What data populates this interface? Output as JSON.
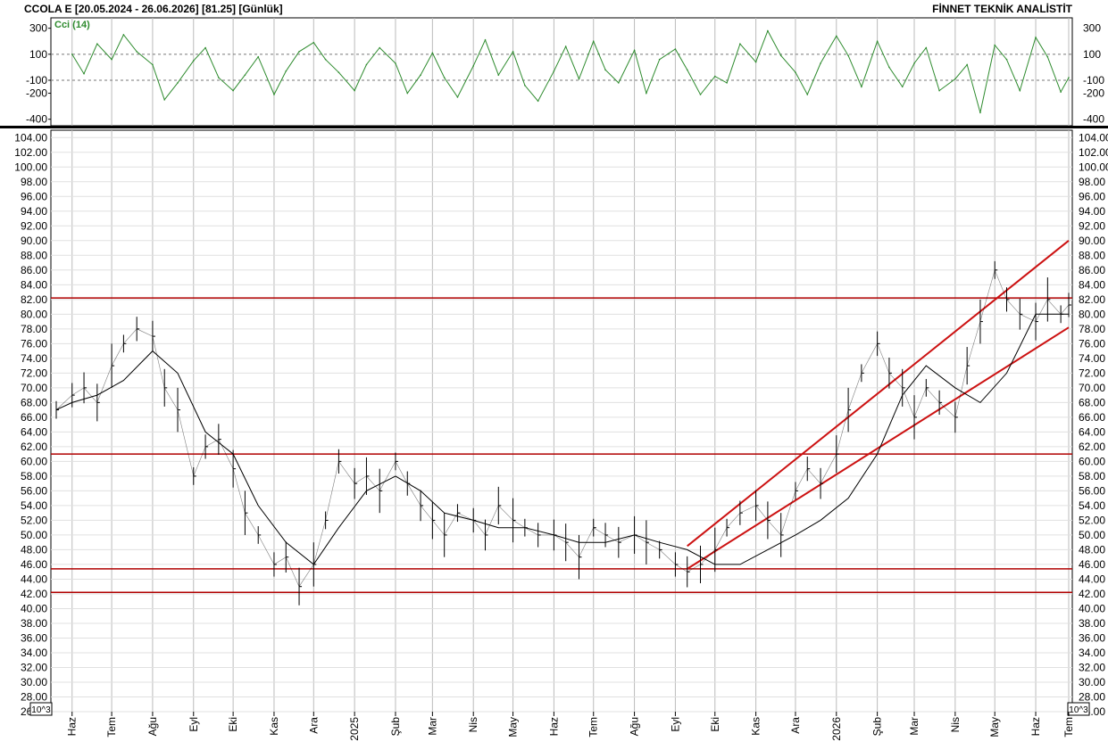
{
  "header": {
    "left_title": "CCOLA E  [20.05.2024 - 26.06.2026]  [81.25]  [Günlük]",
    "right_title": "FİNNET TEKNİK ANALİSTİT"
  },
  "colors": {
    "price_bars": "#000000",
    "moving_average": "#000000",
    "cci_line": "#2e8b2e",
    "support_resistance": "#b00000",
    "channel_lines": "#cc1111",
    "grid": "#bbbbbb"
  },
  "chart_data": [
    {
      "type": "line",
      "title": "Cci (14)",
      "ylim": [
        -450,
        380
      ],
      "y_ticks": [
        300,
        100,
        -100,
        -200,
        -400
      ],
      "reference_levels": [
        100,
        -100
      ],
      "x_range": [
        "2024-05-20",
        "2026-06-26"
      ],
      "series": [
        {
          "name": "Cci (14)",
          "x": [
            "2024-06-01",
            "2024-06-10",
            "2024-06-20",
            "2024-07-01",
            "2024-07-10",
            "2024-07-20",
            "2024-08-01",
            "2024-08-10",
            "2024-08-20",
            "2024-09-01",
            "2024-09-10",
            "2024-09-20",
            "2024-10-01",
            "2024-10-10",
            "2024-10-20",
            "2024-11-01",
            "2024-11-10",
            "2024-11-20",
            "2024-12-01",
            "2024-12-10",
            "2024-12-20",
            "2025-01-01",
            "2025-01-10",
            "2025-01-20",
            "2025-02-01",
            "2025-02-10",
            "2025-02-20",
            "2025-03-01",
            "2025-03-10",
            "2025-03-20",
            "2025-04-01",
            "2025-04-10",
            "2025-04-20",
            "2025-05-01",
            "2025-05-10",
            "2025-05-20",
            "2025-06-01",
            "2025-06-10",
            "2025-06-20",
            "2025-07-01",
            "2025-07-10",
            "2025-07-20",
            "2025-08-01",
            "2025-08-10",
            "2025-08-20",
            "2025-09-01",
            "2025-09-10",
            "2025-09-20",
            "2025-10-01",
            "2025-10-10",
            "2025-10-20",
            "2025-11-01",
            "2025-11-10",
            "2025-11-20",
            "2025-12-01",
            "2025-12-10",
            "2025-12-20",
            "2026-01-01",
            "2026-01-10",
            "2026-01-20",
            "2026-02-01",
            "2026-02-10",
            "2026-02-20",
            "2026-03-01",
            "2026-03-10",
            "2026-03-20",
            "2026-04-01",
            "2026-04-10",
            "2026-04-20",
            "2026-05-01",
            "2026-05-10",
            "2026-05-20",
            "2026-06-01",
            "2026-06-10",
            "2026-06-20",
            "2026-06-26"
          ],
          "values": [
            100,
            -50,
            180,
            60,
            250,
            120,
            20,
            -250,
            -120,
            50,
            150,
            -80,
            -180,
            -60,
            80,
            -210,
            -30,
            120,
            190,
            60,
            -40,
            -180,
            20,
            150,
            30,
            -200,
            -60,
            110,
            -80,
            -230,
            10,
            210,
            -60,
            120,
            -140,
            -260,
            -30,
            160,
            -90,
            200,
            -20,
            -120,
            130,
            -200,
            60,
            140,
            -20,
            -210,
            -70,
            -120,
            180,
            40,
            280,
            90,
            -40,
            -210,
            30,
            240,
            90,
            -150,
            200,
            0,
            -150,
            30,
            150,
            -180,
            -90,
            20,
            -350,
            170,
            60,
            -180,
            230,
            80,
            -190,
            -80
          ]
        }
      ]
    },
    {
      "type": "line",
      "title": "",
      "ylim": [
        26,
        105
      ],
      "y_ticks": [
        104,
        102,
        100,
        98,
        96,
        94,
        92,
        90,
        88,
        86,
        84,
        82,
        80,
        78,
        76,
        74,
        72,
        70,
        68,
        66,
        64,
        62,
        60,
        58,
        56,
        54,
        52,
        50,
        48,
        46,
        44,
        42,
        40,
        38,
        36,
        34,
        32,
        30,
        28,
        26
      ],
      "x_range": [
        "2024-05-20",
        "2026-06-26"
      ],
      "x_tick_labels": [
        "Haz",
        "Tem",
        "Ağu",
        "Eyl",
        "Eki",
        "Kas",
        "Ara",
        "2025",
        "Şub",
        "Mar",
        "Nis",
        "May",
        "Haz",
        "Tem",
        "Ağu",
        "Eyl",
        "Eki",
        "Kas",
        "Ara",
        "2026",
        "Şub",
        "Mar",
        "Nis",
        "May",
        "Haz",
        "Tem"
      ],
      "corner_label": "10^3",
      "last_close": 81.25,
      "horizontal_levels": [
        82.2,
        61.0,
        45.4,
        42.2
      ],
      "channels": [
        {
          "x": [
            "2025-09-10",
            "2026-06-26"
          ],
          "upper": [
            48.5,
            90.0
          ],
          "lower": [
            45.4,
            78.2
          ]
        }
      ],
      "series": [
        {
          "name": "Price",
          "x": [
            "2024-05-20",
            "2024-06-01",
            "2024-06-10",
            "2024-06-20",
            "2024-07-01",
            "2024-07-10",
            "2024-07-20",
            "2024-08-01",
            "2024-08-10",
            "2024-08-20",
            "2024-09-01",
            "2024-09-10",
            "2024-09-20",
            "2024-10-01",
            "2024-10-10",
            "2024-10-20",
            "2024-11-01",
            "2024-11-10",
            "2024-11-20",
            "2024-12-01",
            "2024-12-10",
            "2024-12-20",
            "2025-01-01",
            "2025-01-10",
            "2025-01-20",
            "2025-02-01",
            "2025-02-10",
            "2025-02-20",
            "2025-03-01",
            "2025-03-10",
            "2025-03-20",
            "2025-04-01",
            "2025-04-10",
            "2025-04-20",
            "2025-05-01",
            "2025-05-10",
            "2025-05-20",
            "2025-06-01",
            "2025-06-10",
            "2025-06-20",
            "2025-07-01",
            "2025-07-10",
            "2025-07-20",
            "2025-08-01",
            "2025-08-10",
            "2025-08-20",
            "2025-09-01",
            "2025-09-10",
            "2025-09-20",
            "2025-10-01",
            "2025-10-10",
            "2025-10-20",
            "2025-11-01",
            "2025-11-10",
            "2025-11-20",
            "2025-12-01",
            "2025-12-10",
            "2025-12-20",
            "2026-01-01",
            "2026-01-10",
            "2026-01-20",
            "2026-02-01",
            "2026-02-10",
            "2026-02-20",
            "2026-03-01",
            "2026-03-10",
            "2026-03-20",
            "2026-04-01",
            "2026-04-10",
            "2026-04-20",
            "2026-05-01",
            "2026-05-10",
            "2026-05-20",
            "2026-06-01",
            "2026-06-10",
            "2026-06-20",
            "2026-06-26"
          ],
          "values": [
            67,
            69,
            70,
            68,
            73,
            76,
            78,
            77,
            70,
            67,
            58,
            62,
            63,
            59,
            53,
            50,
            46,
            47,
            43,
            46,
            52,
            60,
            57,
            58,
            56,
            60,
            57,
            54,
            52,
            50,
            53,
            52,
            50,
            54,
            52,
            51,
            50,
            50,
            49,
            47,
            51,
            50,
            49,
            50,
            49,
            48,
            46,
            45,
            46,
            48,
            51,
            53,
            54,
            52,
            50,
            56,
            59,
            57,
            61,
            67,
            72,
            76,
            72,
            70,
            66,
            70,
            68,
            66,
            73,
            79,
            86,
            82,
            80,
            79,
            82,
            80,
            81.25
          ]
        },
        {
          "name": "MA",
          "x": [
            "2024-05-20",
            "2024-06-01",
            "2024-06-20",
            "2024-07-10",
            "2024-08-01",
            "2024-08-20",
            "2024-09-10",
            "2024-10-01",
            "2024-10-20",
            "2024-11-10",
            "2024-12-01",
            "2024-12-20",
            "2025-01-10",
            "2025-02-01",
            "2025-02-20",
            "2025-03-10",
            "2025-04-01",
            "2025-04-20",
            "2025-05-10",
            "2025-06-01",
            "2025-06-20",
            "2025-07-10",
            "2025-08-01",
            "2025-08-20",
            "2025-09-10",
            "2025-10-01",
            "2025-10-20",
            "2025-11-10",
            "2025-12-01",
            "2025-12-20",
            "2026-01-10",
            "2026-02-01",
            "2026-02-20",
            "2026-03-10",
            "2026-04-01",
            "2026-04-20",
            "2026-05-10",
            "2026-06-01",
            "2026-06-26"
          ],
          "values": [
            67,
            68,
            69,
            71,
            75,
            72,
            64,
            61,
            54,
            49,
            46,
            51,
            56,
            58,
            56,
            53,
            52,
            51,
            51,
            50,
            49,
            49,
            50,
            49,
            48,
            46,
            46,
            48,
            50,
            52,
            55,
            61,
            69,
            73,
            70,
            68,
            72,
            80,
            80
          ]
        }
      ]
    }
  ]
}
